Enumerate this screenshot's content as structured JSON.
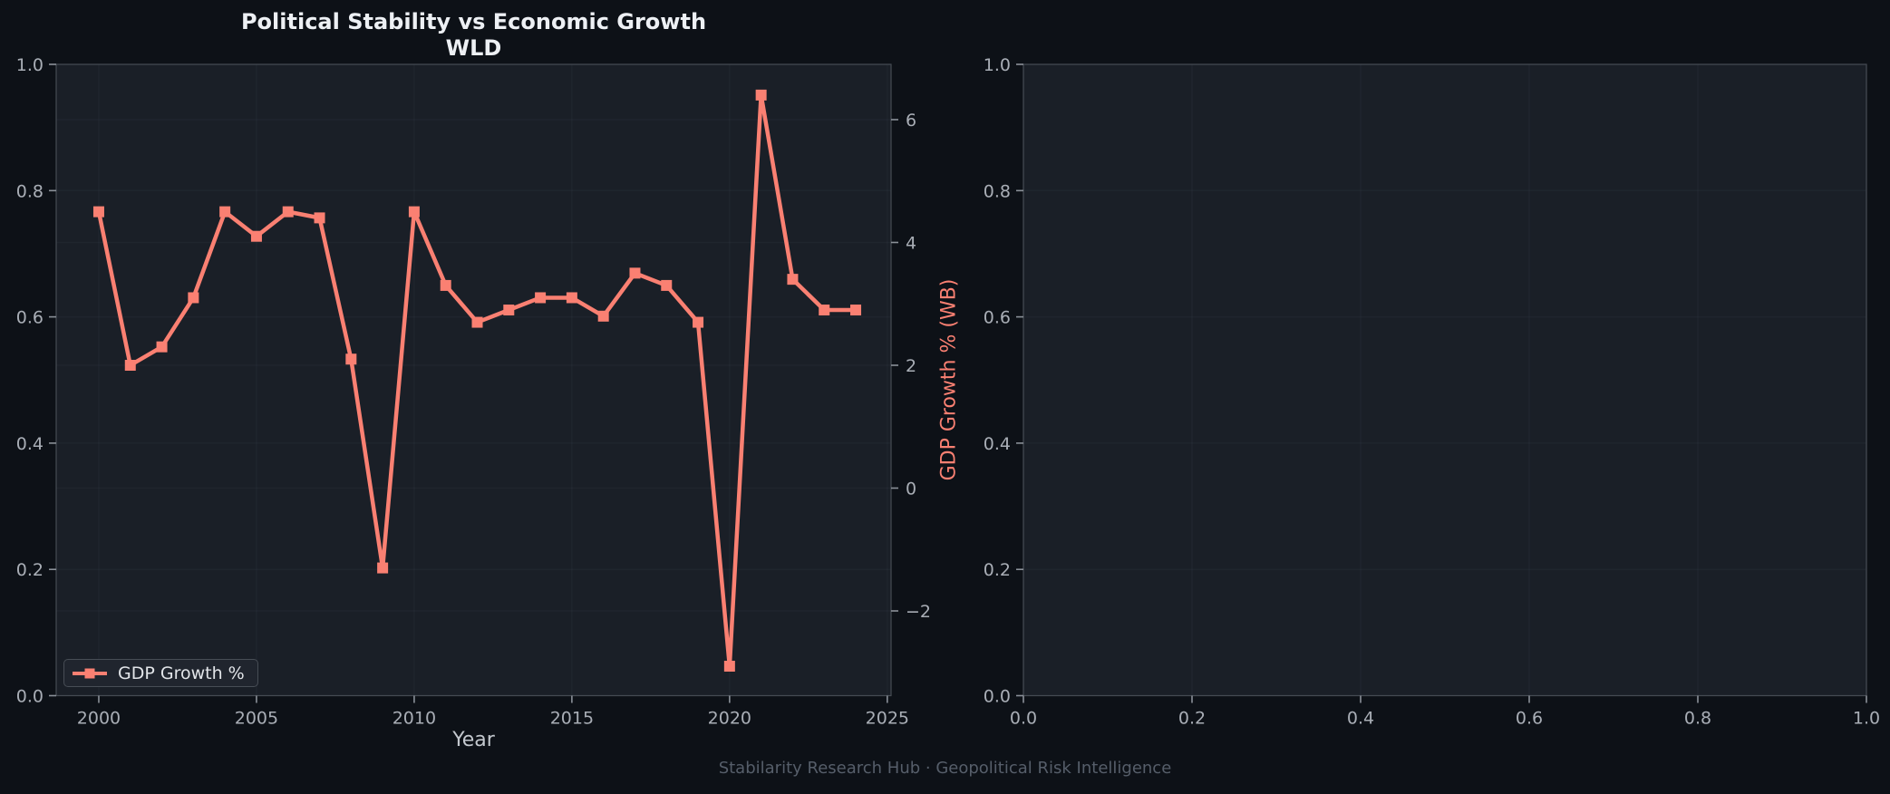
{
  "footer": "Stabilarity Research Hub · Geopolitical Risk Intelligence",
  "colors": {
    "page_bg": "#0d1117",
    "plot_bg": "#1a1f27",
    "line": "#fa8072",
    "title": "#edf0f4",
    "tick_label": "#a9aeb6",
    "axis_label": "#c3c8ce",
    "right_axis_label": "#fa8072",
    "spine": "#454b53",
    "tick_mark": "#8b9199",
    "grid": "rgba(200,214,255,0.03)",
    "legend_bg": "#20252e",
    "legend_border": "#474d55",
    "legend_text": "#e2e5e9",
    "footer_text": "#565e6a"
  },
  "chart_data": [
    {
      "type": "line",
      "title": "Political Stability vs Economic Growth",
      "subtitle": "WLD",
      "xlabel": "Year",
      "x": [
        2000,
        2001,
        2002,
        2003,
        2004,
        2005,
        2006,
        2007,
        2008,
        2009,
        2010,
        2011,
        2012,
        2013,
        2014,
        2015,
        2016,
        2017,
        2018,
        2019,
        2020,
        2021,
        2022,
        2023,
        2024
      ],
      "series": [
        {
          "name": "GDP Growth %",
          "axis": "right",
          "marker": "square",
          "values": [
            4.5,
            2.0,
            2.3,
            3.1,
            4.5,
            4.1,
            4.5,
            4.4,
            2.1,
            -1.3,
            4.5,
            3.3,
            2.7,
            2.9,
            3.1,
            3.1,
            2.8,
            3.5,
            3.3,
            2.7,
            -2.9,
            6.4,
            3.4,
            2.9,
            2.9
          ]
        }
      ],
      "x_axis": {
        "ticks": [
          2000,
          2005,
          2010,
          2015,
          2020,
          2025
        ],
        "lim": [
          1998.65,
          2025.12
        ]
      },
      "left_axis": {
        "ticks": [
          "0.0",
          "0.2",
          "0.4",
          "0.6",
          "0.8",
          "1.0"
        ],
        "lim": [
          0.0,
          1.0
        ]
      },
      "right_axis": {
        "label": "GDP Growth % (WB)",
        "ticks": [
          6,
          4,
          2,
          0,
          -2
        ],
        "lim": [
          -3.38,
          6.9
        ]
      },
      "legend": {
        "labels": [
          "GDP Growth %"
        ],
        "position": "lower left"
      },
      "grid": true
    },
    {
      "type": "empty",
      "x_axis": {
        "ticks": [
          "0.0",
          "0.2",
          "0.4",
          "0.6",
          "0.8",
          "1.0"
        ],
        "lim": [
          0.0,
          1.0
        ]
      },
      "y_axis": {
        "ticks": [
          "0.0",
          "0.2",
          "0.4",
          "0.6",
          "0.8",
          "1.0"
        ],
        "lim": [
          0.0,
          1.0
        ]
      },
      "grid": true
    }
  ]
}
